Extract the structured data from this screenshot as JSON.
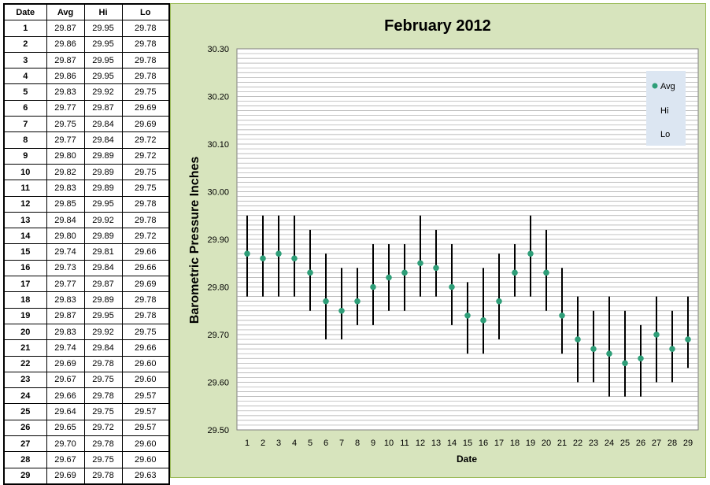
{
  "table": {
    "headers": [
      "Date",
      "Avg",
      "Hi",
      "Lo"
    ],
    "rows": [
      [
        "1",
        "29.87",
        "29.95",
        "29.78"
      ],
      [
        "2",
        "29.86",
        "29.95",
        "29.78"
      ],
      [
        "3",
        "29.87",
        "29.95",
        "29.78"
      ],
      [
        "4",
        "29.86",
        "29.95",
        "29.78"
      ],
      [
        "5",
        "29.83",
        "29.92",
        "29.75"
      ],
      [
        "6",
        "29.77",
        "29.87",
        "29.69"
      ],
      [
        "7",
        "29.75",
        "29.84",
        "29.69"
      ],
      [
        "8",
        "29.77",
        "29.84",
        "29.72"
      ],
      [
        "9",
        "29.80",
        "29.89",
        "29.72"
      ],
      [
        "10",
        "29.82",
        "29.89",
        "29.75"
      ],
      [
        "11",
        "29.83",
        "29.89",
        "29.75"
      ],
      [
        "12",
        "29.85",
        "29.95",
        "29.78"
      ],
      [
        "13",
        "29.84",
        "29.92",
        "29.78"
      ],
      [
        "14",
        "29.80",
        "29.89",
        "29.72"
      ],
      [
        "15",
        "29.74",
        "29.81",
        "29.66"
      ],
      [
        "16",
        "29.73",
        "29.84",
        "29.66"
      ],
      [
        "17",
        "29.77",
        "29.87",
        "29.69"
      ],
      [
        "18",
        "29.83",
        "29.89",
        "29.78"
      ],
      [
        "19",
        "29.87",
        "29.95",
        "29.78"
      ],
      [
        "20",
        "29.83",
        "29.92",
        "29.75"
      ],
      [
        "21",
        "29.74",
        "29.84",
        "29.66"
      ],
      [
        "22",
        "29.69",
        "29.78",
        "29.60"
      ],
      [
        "23",
        "29.67",
        "29.75",
        "29.60"
      ],
      [
        "24",
        "29.66",
        "29.78",
        "29.57"
      ],
      [
        "25",
        "29.64",
        "29.75",
        "29.57"
      ],
      [
        "26",
        "29.65",
        "29.72",
        "29.57"
      ],
      [
        "27",
        "29.70",
        "29.78",
        "29.60"
      ],
      [
        "28",
        "29.67",
        "29.75",
        "29.60"
      ],
      [
        "29",
        "29.69",
        "29.78",
        "29.63"
      ]
    ]
  },
  "chart_data": {
    "type": "scatter",
    "title": "February 2012",
    "xlabel": "Date",
    "ylabel": "Barometric Pressure Inches",
    "ylim": [
      29.5,
      30.3
    ],
    "ytick_step": 0.1,
    "grid": true,
    "legend_position": "top-right",
    "x": [
      1,
      2,
      3,
      4,
      5,
      6,
      7,
      8,
      9,
      10,
      11,
      12,
      13,
      14,
      15,
      16,
      17,
      18,
      19,
      20,
      21,
      22,
      23,
      24,
      25,
      26,
      27,
      28,
      29
    ],
    "series": [
      {
        "name": "Avg",
        "color": "#2e9e78",
        "marker": "circle",
        "values": [
          29.87,
          29.86,
          29.87,
          29.86,
          29.83,
          29.77,
          29.75,
          29.77,
          29.8,
          29.82,
          29.83,
          29.85,
          29.84,
          29.8,
          29.74,
          29.73,
          29.77,
          29.83,
          29.87,
          29.83,
          29.74,
          29.69,
          29.67,
          29.66,
          29.64,
          29.65,
          29.7,
          29.67,
          29.69
        ]
      },
      {
        "name": "Hi",
        "color": "#000000",
        "marker": "none",
        "values": [
          29.95,
          29.95,
          29.95,
          29.95,
          29.92,
          29.87,
          29.84,
          29.84,
          29.89,
          29.89,
          29.89,
          29.95,
          29.92,
          29.89,
          29.81,
          29.84,
          29.87,
          29.89,
          29.95,
          29.92,
          29.84,
          29.78,
          29.75,
          29.78,
          29.75,
          29.72,
          29.78,
          29.75,
          29.78
        ]
      },
      {
        "name": "Lo",
        "color": "#000000",
        "marker": "none",
        "values": [
          29.78,
          29.78,
          29.78,
          29.78,
          29.75,
          29.69,
          29.69,
          29.72,
          29.72,
          29.75,
          29.75,
          29.78,
          29.78,
          29.72,
          29.66,
          29.66,
          29.69,
          29.78,
          29.78,
          29.75,
          29.66,
          29.6,
          29.6,
          29.57,
          29.57,
          29.57,
          29.6,
          29.6,
          29.63
        ]
      }
    ],
    "colors": {
      "panel": "#d7e4bd",
      "plot": "#ffffff",
      "grid": "#a6a6a6",
      "legend_bg": "#dce6f2"
    }
  }
}
